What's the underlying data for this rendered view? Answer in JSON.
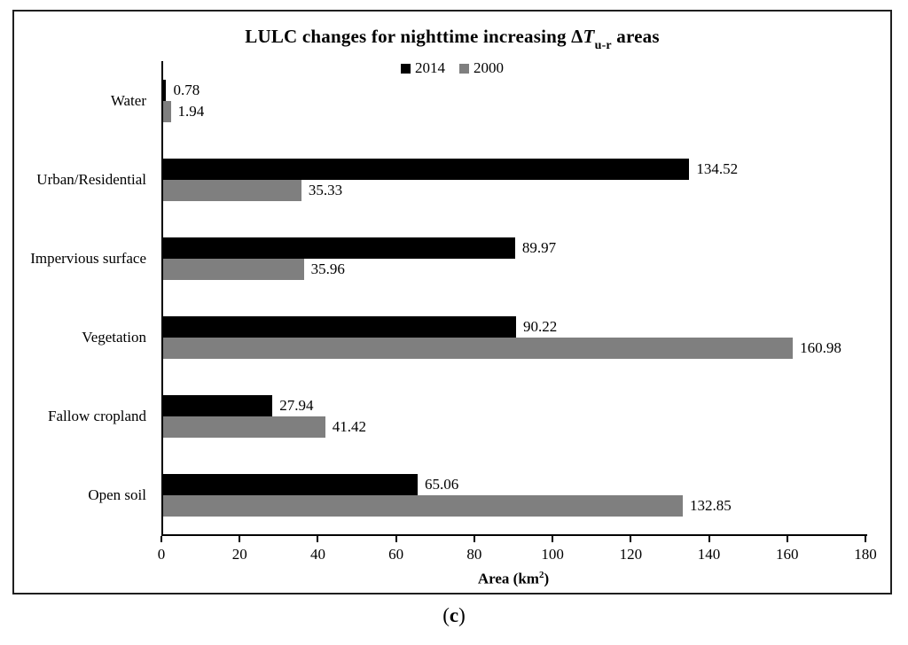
{
  "header": {
    "title_prefix": "LULC changes for nighttime increasing Δ",
    "title_italic": "T",
    "title_subscript": "u-r",
    "title_suffix": " areas"
  },
  "xaxis": {
    "label_prefix": "Area (km",
    "label_sup": "2",
    "label_suffix": ")"
  },
  "caption": {
    "paren_open": "(",
    "letter": "c",
    "paren_close": ")"
  },
  "colors": {
    "series_2014": "#000000",
    "series_2000": "#7f7f7f",
    "frame": "#1f1f1f"
  },
  "chart_data": {
    "type": "bar",
    "orientation": "horizontal",
    "title": "LULC changes for nighttime increasing ΔT u-r areas",
    "categories": [
      "Water",
      "Urban/Residential",
      "Impervious surface",
      "Vegetation",
      "Fallow cropland",
      "Open soil"
    ],
    "series": [
      {
        "name": "2014",
        "color": "#000000",
        "values": [
          0.78,
          134.52,
          89.97,
          90.22,
          27.94,
          65.06
        ]
      },
      {
        "name": "2000",
        "color": "#7f7f7f",
        "values": [
          1.94,
          35.33,
          35.96,
          160.98,
          41.42,
          132.85
        ]
      }
    ],
    "xlabel": "Area (km²)",
    "xlim": [
      0,
      180
    ],
    "xticks": [
      0,
      20,
      40,
      60,
      80,
      100,
      120,
      140,
      160,
      180
    ],
    "legend_position": "top-center",
    "grid": false,
    "value_labels": true,
    "caption": "(c)"
  }
}
